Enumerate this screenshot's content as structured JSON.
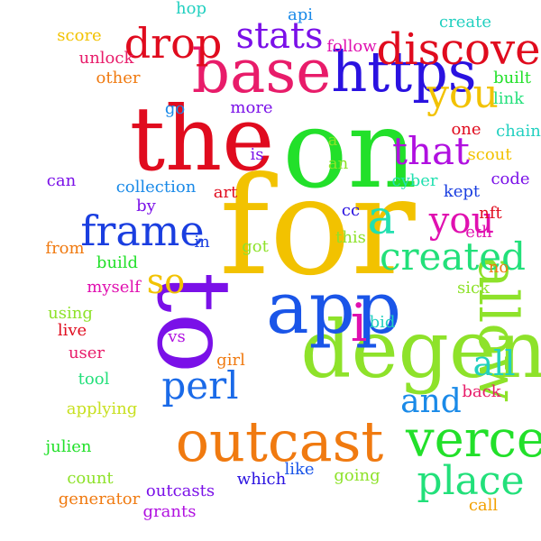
{
  "word_cloud": {
    "words": [
      {
        "text": "for",
        "color": "#f2c200",
        "rotated": false
      },
      {
        "text": "on",
        "color": "#22e02a",
        "rotated": false
      },
      {
        "text": "the",
        "color": "#e00b1e",
        "rotated": false
      },
      {
        "text": "to",
        "color": "#7a10e8",
        "rotated": true
      },
      {
        "text": "degen",
        "color": "#8ee22a",
        "rotated": false
      },
      {
        "text": "app",
        "color": "#1a55e8",
        "rotated": false
      },
      {
        "text": "base",
        "color": "#e81c6a",
        "rotated": false
      },
      {
        "text": "https",
        "color": "#2a12e0",
        "rotated": false
      },
      {
        "text": "outcast",
        "color": "#f07a10",
        "rotated": false
      },
      {
        "text": "verce",
        "color": "#22e02a",
        "rotated": false
      },
      {
        "text": "discover",
        "color": "#e00b1e",
        "rotated": false
      },
      {
        "text": "allow",
        "color": "#8ee22a",
        "rotated": true
      },
      {
        "text": "frame",
        "color": "#1a3ee0",
        "rotated": false
      },
      {
        "text": "created",
        "color": "#22e07a",
        "rotated": false
      },
      {
        "text": "place",
        "color": "#22e07a",
        "rotated": false
      },
      {
        "text": "drop",
        "color": "#e00b1e",
        "rotated": false
      },
      {
        "text": "that",
        "color": "#b010e0",
        "rotated": false
      },
      {
        "text": "you",
        "color": "#f2c200",
        "rotated": false
      },
      {
        "text": "you",
        "color": "#e010b0",
        "rotated": false
      },
      {
        "text": "stats",
        "color": "#7a10e8",
        "rotated": false
      },
      {
        "text": "perl",
        "color": "#1a6ae8",
        "rotated": false
      },
      {
        "text": "and",
        "color": "#1a8ae8",
        "rotated": false
      },
      {
        "text": "all",
        "color": "#22d0c0",
        "rotated": false
      },
      {
        "text": "so",
        "color": "#f2c200",
        "rotated": false
      },
      {
        "text": "a",
        "color": "#22e0b0",
        "rotated": false
      },
      {
        "text": "i",
        "color": "#e010b0",
        "rotated": false
      },
      {
        "text": "cyber",
        "color": "#22e0b0",
        "rotated": false
      },
      {
        "text": "scout",
        "color": "#f2c200",
        "rotated": false
      },
      {
        "text": "built",
        "color": "#22e02a",
        "rotated": false
      },
      {
        "text": "link",
        "color": "#22e07a",
        "rotated": false
      },
      {
        "text": "chain",
        "color": "#22d0c0",
        "rotated": false
      },
      {
        "text": "one",
        "color": "#e00b1e",
        "rotated": false
      },
      {
        "text": "code",
        "color": "#7a10e8",
        "rotated": false
      },
      {
        "text": "kept",
        "color": "#1a3ee0",
        "rotated": false
      },
      {
        "text": "nft",
        "color": "#e00b1e",
        "rotated": false
      },
      {
        "text": "eth",
        "color": "#e010b0",
        "rotated": false
      },
      {
        "text": "no",
        "color": "#f07a10",
        "rotated": false
      },
      {
        "text": "sick",
        "color": "#8ee22a",
        "rotated": false
      },
      {
        "text": "back",
        "color": "#e81c6a",
        "rotated": false
      },
      {
        "text": "bid",
        "color": "#22d0c0",
        "rotated": false
      },
      {
        "text": "girl",
        "color": "#f07a10",
        "rotated": false
      },
      {
        "text": "vs",
        "color": "#b010e0",
        "rotated": false
      },
      {
        "text": "hop",
        "color": "#22d0c0",
        "rotated": false
      },
      {
        "text": "api",
        "color": "#1a8ae8",
        "rotated": false
      },
      {
        "text": "create",
        "color": "#22d0c0",
        "rotated": false
      },
      {
        "text": "score",
        "color": "#f2c200",
        "rotated": false
      },
      {
        "text": "unlock",
        "color": "#e81c6a",
        "rotated": false
      },
      {
        "text": "other",
        "color": "#f07a10",
        "rotated": false
      },
      {
        "text": "follow",
        "color": "#e010b0",
        "rotated": false
      },
      {
        "text": "go",
        "color": "#1a8ae8",
        "rotated": false
      },
      {
        "text": "more",
        "color": "#7a10e8",
        "rotated": false
      },
      {
        "text": "is",
        "color": "#7a10e8",
        "rotated": false
      },
      {
        "text": "can",
        "color": "#7a10e8",
        "rotated": false
      },
      {
        "text": "collection",
        "color": "#1a8ae8",
        "rotated": false
      },
      {
        "text": "art",
        "color": "#e00b1e",
        "rotated": false
      },
      {
        "text": "by",
        "color": "#7a10e8",
        "rotated": false
      },
      {
        "text": "in",
        "color": "#1a3ee0",
        "rotated": false
      },
      {
        "text": "cc",
        "color": "#2a12e0",
        "rotated": false
      },
      {
        "text": "this",
        "color": "#8ee22a",
        "rotated": false
      },
      {
        "text": "got",
        "color": "#8ee22a",
        "rotated": false
      },
      {
        "text": "a",
        "color": "#8ee22a",
        "rotated": false
      },
      {
        "text": "an",
        "color": "#8ee22a",
        "rotated": false
      },
      {
        "text": "from",
        "color": "#f07a10",
        "rotated": false
      },
      {
        "text": "build",
        "color": "#22e02a",
        "rotated": false
      },
      {
        "text": "myself",
        "color": "#e010b0",
        "rotated": false
      },
      {
        "text": "using",
        "color": "#8ee22a",
        "rotated": false
      },
      {
        "text": "live",
        "color": "#e00b1e",
        "rotated": false
      },
      {
        "text": "user",
        "color": "#e81c6a",
        "rotated": false
      },
      {
        "text": "tool",
        "color": "#22e07a",
        "rotated": false
      },
      {
        "text": "applying",
        "color": "#c8e020",
        "rotated": false
      },
      {
        "text": "julien",
        "color": "#22e02a",
        "rotated": false
      },
      {
        "text": "count",
        "color": "#8ee22a",
        "rotated": false
      },
      {
        "text": "generator",
        "color": "#f07a10",
        "rotated": false
      },
      {
        "text": "outcasts",
        "color": "#7a10e8",
        "rotated": false
      },
      {
        "text": "grants",
        "color": "#b010e0",
        "rotated": false
      },
      {
        "text": "which",
        "color": "#2a12e0",
        "rotated": false
      },
      {
        "text": "like",
        "color": "#1a55e8",
        "rotated": false
      },
      {
        "text": "going",
        "color": "#8ee22a",
        "rotated": false
      },
      {
        "text": "call",
        "color": "#f2a000",
        "rotated": false
      }
    ]
  }
}
